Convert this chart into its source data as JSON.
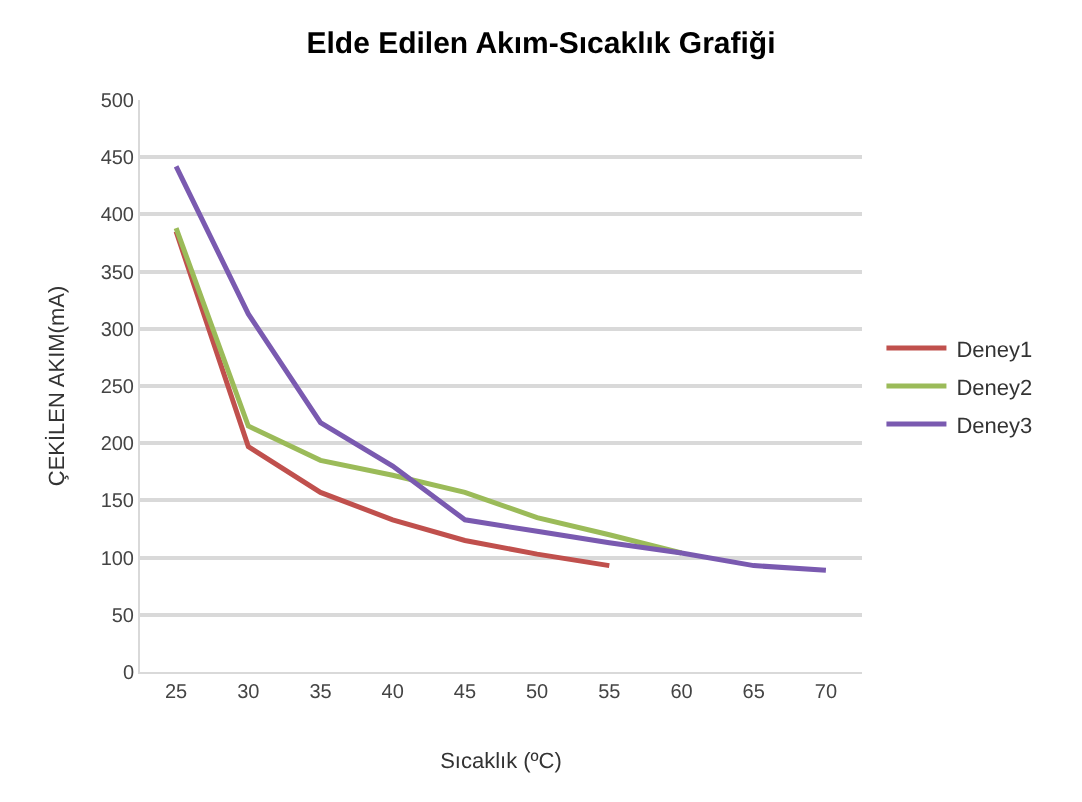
{
  "chart_data": {
    "type": "line",
    "title": "Elde Edilen Akım-Sıcaklık Grafiği",
    "xlabel": "Sıcaklık (ºC)",
    "ylabel": "ÇEKİLEN AKIM(mA)",
    "categories": [
      "25",
      "30",
      "35",
      "40",
      "45",
      "50",
      "55",
      "60",
      "65",
      "70"
    ],
    "series": [
      {
        "name": "Deney1",
        "color": "#c0504d",
        "values": [
          385,
          197,
          157,
          133,
          115,
          103,
          93,
          null,
          null,
          null
        ]
      },
      {
        "name": "Deney2",
        "color": "#9bbb59",
        "values": [
          388,
          215,
          185,
          172,
          157,
          135,
          120,
          104,
          null,
          null
        ]
      },
      {
        "name": "Deney3",
        "color": "#7a5ab0",
        "values": [
          442,
          313,
          218,
          180,
          133,
          123,
          113,
          104,
          93,
          89
        ]
      }
    ],
    "ylim": [
      0,
      500
    ],
    "yticks": [
      0,
      50,
      100,
      150,
      200,
      250,
      300,
      350,
      400,
      450,
      500
    ],
    "grid": "y",
    "legend": "right",
    "marker": "none"
  }
}
